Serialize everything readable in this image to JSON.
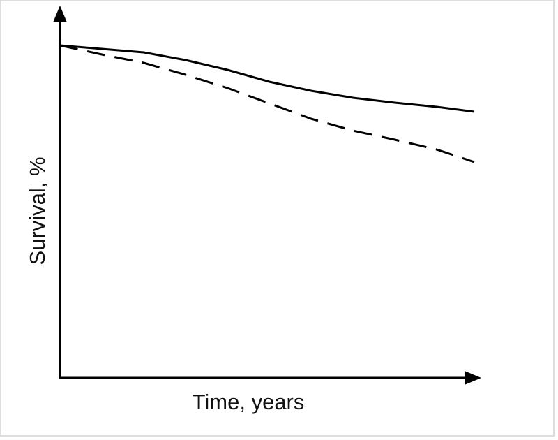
{
  "chart_data": {
    "type": "line",
    "x_label": "Time, years",
    "y_label": "Survival, %",
    "x": [
      0,
      1,
      2,
      3,
      4,
      5,
      6,
      7,
      8,
      9,
      9.9
    ],
    "xlim": [
      0,
      10
    ],
    "ylim": [
      0,
      100
    ],
    "series": [
      {
        "color": "#000000",
        "style": "solid",
        "values": [
          95,
          94,
          93,
          90.8,
          88,
          84.6,
          82,
          80,
          78.6,
          77.4,
          76
        ]
      },
      {
        "color": "#000000",
        "style": "dashed",
        "values": [
          95,
          92.4,
          90,
          86.6,
          82.8,
          78.4,
          74,
          70.6,
          68,
          65.2,
          61.6
        ]
      }
    ]
  }
}
